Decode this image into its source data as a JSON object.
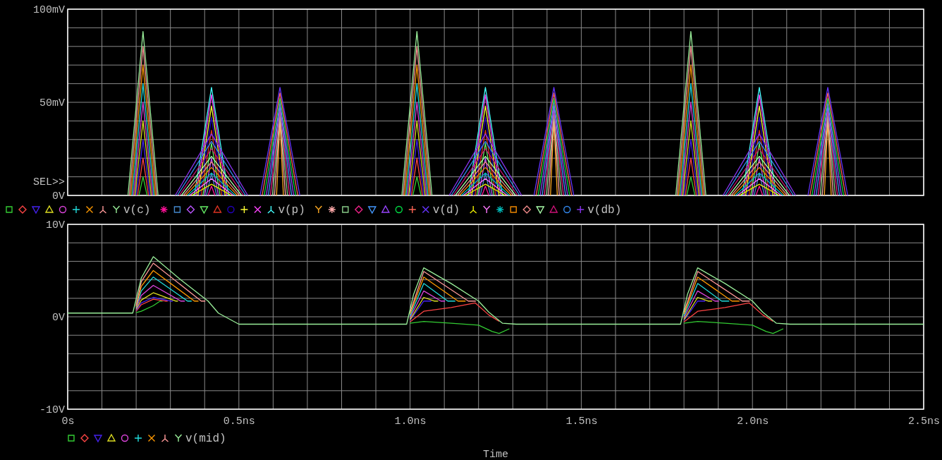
{
  "chart_data": [
    {
      "type": "line",
      "xlim": [
        0,
        2.5
      ],
      "xticks": [
        0,
        0.1,
        0.2,
        0.3,
        0.4,
        0.5,
        0.6,
        0.7,
        0.8,
        0.9,
        1.0,
        1.1,
        1.2,
        1.3,
        1.4,
        1.5,
        1.6,
        1.7,
        1.8,
        1.9,
        2.0,
        2.1,
        2.2,
        2.3,
        2.4,
        2.5
      ],
      "ylim": [
        0,
        100
      ],
      "yticks": [
        {
          "value": 0,
          "label": "0V"
        },
        {
          "value": 10,
          "label": null
        },
        {
          "value": 20,
          "label": null
        },
        {
          "value": 30,
          "label": null
        },
        {
          "value": 40,
          "label": null
        },
        {
          "value": 50,
          "label": "50mV"
        },
        {
          "value": 60,
          "label": null
        },
        {
          "value": 70,
          "label": null
        },
        {
          "value": 80,
          "label": null
        },
        {
          "value": 90,
          "label": null
        },
        {
          "value": 100,
          "label": "100mV"
        }
      ],
      "tick_labels": "y",
      "grid": true,
      "legend": "bottom left",
      "annotations": [
        "SEL>>"
      ],
      "series": [
        {
          "color": "#33cc33",
          "x": [
            0.208,
            0.22,
            0.232,
            0.6,
            1.008,
            1.02,
            1.032,
            1.4,
            1.808,
            1.82,
            1.832
          ],
          "values": [
            0,
            10,
            0,
            null,
            0,
            10,
            0,
            null,
            0,
            10,
            0
          ]
        },
        {
          "color": "#ff4444",
          "x": [
            0.204,
            0.22,
            0.236,
            0.6,
            1.004,
            1.02,
            1.036,
            1.4,
            1.804,
            1.82,
            1.836
          ],
          "values": [
            0,
            20,
            0,
            null,
            0,
            20,
            0,
            null,
            0,
            20,
            0
          ]
        },
        {
          "color": "#4422ee",
          "x": [
            0.2,
            0.22,
            0.24,
            0.6,
            1.0,
            1.02,
            1.04,
            1.4,
            1.8,
            1.82,
            1.84
          ],
          "values": [
            0,
            30,
            0,
            null,
            0,
            30,
            0,
            null,
            0,
            30,
            0
          ]
        },
        {
          "color": "#dddd22",
          "x": [
            0.196,
            0.22,
            0.244,
            0.6,
            0.996,
            1.02,
            1.044,
            1.4,
            1.796,
            1.82,
            1.844
          ],
          "values": [
            0,
            40,
            0,
            null,
            0,
            40,
            0,
            null,
            0,
            40,
            0
          ]
        },
        {
          "color": "#dd44dd",
          "x": [
            0.192,
            0.22,
            0.248,
            0.6,
            0.992,
            1.02,
            1.048,
            1.4,
            1.792,
            1.82,
            1.848
          ],
          "values": [
            0,
            50,
            0,
            null,
            0,
            50,
            0,
            null,
            0,
            50,
            0
          ]
        },
        {
          "color": "#22dddd",
          "x": [
            0.188,
            0.22,
            0.252,
            0.6,
            0.988,
            1.02,
            1.052,
            1.4,
            1.788,
            1.82,
            1.852
          ],
          "values": [
            0,
            60,
            0,
            null,
            0,
            60,
            0,
            null,
            0,
            60,
            0
          ]
        },
        {
          "color": "#ff9900",
          "x": [
            0.184,
            0.22,
            0.256,
            0.6,
            0.984,
            1.02,
            1.056,
            1.4,
            1.784,
            1.82,
            1.856
          ],
          "values": [
            0,
            70,
            0,
            null,
            0,
            70,
            0,
            null,
            0,
            70,
            0
          ]
        },
        {
          "color": "#ff9999",
          "x": [
            0.18,
            0.22,
            0.26,
            0.6,
            0.98,
            1.02,
            1.06,
            1.4,
            1.78,
            1.82,
            1.86
          ],
          "values": [
            0,
            80,
            0,
            null,
            0,
            80,
            0,
            null,
            0,
            80,
            0
          ]
        },
        {
          "name": "v(c)",
          "color": "#99ee99",
          "x": [
            0.176,
            0.22,
            0.264,
            0.6,
            0.976,
            1.02,
            1.064,
            1.4,
            1.776,
            1.82,
            1.864
          ],
          "values": [
            0,
            88,
            0,
            null,
            0,
            88,
            0,
            null,
            0,
            88,
            0
          ]
        },
        {
          "color": "#ff1199",
          "x": [
            0.41,
            0.42,
            0.43,
            0.8,
            1.21,
            1.22,
            1.23,
            1.6,
            2.01,
            2.02,
            2.03
          ],
          "values": [
            0,
            5,
            0,
            null,
            0,
            5,
            0,
            null,
            0,
            5,
            0
          ]
        },
        {
          "color": "#4488cc",
          "x": [
            0.405,
            0.42,
            0.435,
            0.8,
            1.205,
            1.22,
            1.235,
            1.6,
            2.005,
            2.02,
            2.035
          ],
          "values": [
            0,
            12,
            0,
            null,
            0,
            12,
            0,
            null,
            0,
            12,
            0
          ]
        },
        {
          "color": "#bb55ff",
          "x": [
            0.4,
            0.42,
            0.44,
            0.8,
            1.2,
            1.22,
            1.24,
            1.6,
            2.0,
            2.02,
            2.04
          ],
          "values": [
            0,
            20,
            0,
            null,
            0,
            20,
            0,
            null,
            0,
            20,
            0
          ]
        },
        {
          "color": "#66ee66",
          "x": [
            0.395,
            0.42,
            0.445,
            0.8,
            1.195,
            1.22,
            1.245,
            1.6,
            1.995,
            2.02,
            2.045
          ],
          "values": [
            0,
            28,
            0,
            null,
            0,
            28,
            0,
            null,
            0,
            28,
            0
          ]
        },
        {
          "color": "#dd3322",
          "x": [
            0.39,
            0.42,
            0.45,
            0.8,
            1.19,
            1.22,
            1.25,
            1.6,
            1.99,
            2.02,
            2.05
          ],
          "values": [
            0,
            35,
            0,
            null,
            0,
            35,
            0,
            null,
            0,
            35,
            0
          ]
        },
        {
          "color": "#2200bb",
          "x": [
            0.385,
            0.42,
            0.455,
            0.8,
            1.185,
            1.22,
            1.255,
            1.6,
            1.985,
            2.02,
            2.055
          ],
          "values": [
            0,
            42,
            0,
            null,
            0,
            42,
            0,
            null,
            0,
            42,
            0
          ]
        },
        {
          "color": "#ffff33",
          "x": [
            0.38,
            0.42,
            0.46,
            0.8,
            1.18,
            1.22,
            1.26,
            1.6,
            1.98,
            2.02,
            2.06
          ],
          "values": [
            0,
            48,
            0,
            null,
            0,
            48,
            0,
            null,
            0,
            48,
            0
          ]
        },
        {
          "color": "#ff44ff",
          "x": [
            0.375,
            0.42,
            0.465,
            0.8,
            1.175,
            1.22,
            1.265,
            1.6,
            1.975,
            2.02,
            2.065
          ],
          "values": [
            0,
            54,
            0,
            null,
            0,
            54,
            0,
            null,
            0,
            54,
            0
          ]
        },
        {
          "name": "v(p)",
          "color": "#44ffff",
          "x": [
            0.37,
            0.42,
            0.47,
            0.8,
            1.17,
            1.22,
            1.27,
            1.6,
            1.97,
            2.02,
            2.07
          ],
          "values": [
            0,
            58,
            0,
            null,
            0,
            58,
            0,
            null,
            0,
            58,
            0
          ]
        },
        {
          "color": "#ffaa22",
          "x": [
            0.61,
            0.62,
            0.63,
            1.0,
            1.41,
            1.42,
            1.43,
            1.8,
            2.21,
            2.22,
            2.23
          ],
          "values": [
            0,
            40,
            0,
            null,
            0,
            40,
            0,
            null,
            0,
            40,
            0
          ]
        },
        {
          "color": "#ffaaaa",
          "x": [
            0.604,
            0.62,
            0.636,
            1.0,
            1.404,
            1.42,
            1.436,
            1.8,
            2.204,
            2.22,
            2.236
          ],
          "values": [
            0,
            42,
            0,
            null,
            0,
            42,
            0,
            null,
            0,
            42,
            0
          ]
        },
        {
          "color": "#88cc88",
          "x": [
            0.598,
            0.62,
            0.642,
            1.0,
            1.398,
            1.42,
            1.442,
            1.8,
            2.198,
            2.22,
            2.242
          ],
          "values": [
            0,
            44,
            0,
            null,
            0,
            44,
            0,
            null,
            0,
            44,
            0
          ]
        },
        {
          "color": "#ee2288",
          "x": [
            0.592,
            0.62,
            0.648,
            1.0,
            1.392,
            1.42,
            1.448,
            1.8,
            2.192,
            2.22,
            2.248
          ],
          "values": [
            0,
            46,
            0,
            null,
            0,
            46,
            0,
            null,
            0,
            46,
            0
          ]
        },
        {
          "color": "#4499ff",
          "x": [
            0.586,
            0.62,
            0.654,
            1.0,
            1.386,
            1.42,
            1.454,
            1.8,
            2.186,
            2.22,
            2.254
          ],
          "values": [
            0,
            48,
            0,
            null,
            0,
            48,
            0,
            null,
            0,
            48,
            0
          ]
        },
        {
          "color": "#9944ff",
          "x": [
            0.58,
            0.62,
            0.66,
            1.0,
            1.38,
            1.42,
            1.46,
            1.8,
            2.18,
            2.22,
            2.26
          ],
          "values": [
            0,
            50,
            0,
            null,
            0,
            50,
            0,
            null,
            0,
            50,
            0
          ]
        },
        {
          "color": "#00dd44",
          "x": [
            0.574,
            0.62,
            0.666,
            1.0,
            1.374,
            1.42,
            1.466,
            1.8,
            2.174,
            2.22,
            2.266
          ],
          "values": [
            0,
            52,
            0,
            null,
            0,
            52,
            0,
            null,
            0,
            52,
            0
          ]
        },
        {
          "color": "#ff6655",
          "x": [
            0.568,
            0.62,
            0.672,
            1.0,
            1.368,
            1.42,
            1.472,
            1.8,
            2.168,
            2.22,
            2.272
          ],
          "values": [
            0,
            55,
            0,
            null,
            0,
            55,
            0,
            null,
            0,
            55,
            0
          ]
        },
        {
          "name": "v(d)",
          "color": "#6633ff",
          "x": [
            0.562,
            0.62,
            0.678,
            1.0,
            1.362,
            1.42,
            1.478,
            1.8,
            2.162,
            2.22,
            2.278
          ],
          "values": [
            0,
            58,
            0,
            null,
            0,
            58,
            0,
            null,
            0,
            58,
            0
          ]
        },
        {
          "color": "#eeee00",
          "x": [
            0.362,
            0.42,
            0.478,
            0.8,
            1.162,
            1.22,
            1.278,
            1.6,
            1.962,
            2.02,
            2.078
          ],
          "values": [
            0,
            6,
            0,
            null,
            0,
            6,
            0,
            null,
            0,
            6,
            0
          ]
        },
        {
          "color": "#ff77ff",
          "x": [
            0.356,
            0.42,
            0.484,
            0.8,
            1.156,
            1.22,
            1.284,
            1.6,
            1.956,
            2.02,
            2.084
          ],
          "values": [
            0,
            9,
            0,
            null,
            0,
            9,
            0,
            null,
            0,
            9,
            0
          ]
        },
        {
          "color": "#00bbbb",
          "x": [
            0.35,
            0.42,
            0.49,
            0.8,
            1.15,
            1.22,
            1.29,
            1.6,
            1.95,
            2.02,
            2.09
          ],
          "values": [
            0,
            12,
            0,
            null,
            0,
            12,
            0,
            null,
            0,
            12,
            0
          ]
        },
        {
          "color": "#ee8800",
          "x": [
            0.344,
            0.42,
            0.496,
            0.8,
            1.144,
            1.22,
            1.296,
            1.6,
            1.944,
            2.02,
            2.096
          ],
          "values": [
            0,
            15,
            0,
            null,
            0,
            15,
            0,
            null,
            0,
            15,
            0
          ]
        },
        {
          "color": "#ee8888",
          "x": [
            0.338,
            0.42,
            0.502,
            0.8,
            1.138,
            1.22,
            1.302,
            1.6,
            1.938,
            2.02,
            2.102
          ],
          "values": [
            0,
            18,
            0,
            null,
            0,
            18,
            0,
            null,
            0,
            18,
            0
          ]
        },
        {
          "color": "#aaffaa",
          "x": [
            0.332,
            0.42,
            0.508,
            0.8,
            1.132,
            1.22,
            1.308,
            1.6,
            1.932,
            2.02,
            2.108
          ],
          "values": [
            0,
            21,
            0,
            null,
            0,
            21,
            0,
            null,
            0,
            21,
            0
          ]
        },
        {
          "color": "#cc1177",
          "x": [
            0.326,
            0.42,
            0.514,
            0.8,
            1.126,
            1.22,
            1.314,
            1.6,
            1.926,
            2.02,
            2.114
          ],
          "values": [
            0,
            25,
            0,
            null,
            0,
            25,
            0,
            null,
            0,
            25,
            0
          ]
        },
        {
          "color": "#3388ee",
          "x": [
            0.32,
            0.42,
            0.52,
            0.8,
            1.12,
            1.22,
            1.32,
            1.6,
            1.92,
            2.02,
            2.12
          ],
          "values": [
            0,
            29,
            0,
            null,
            0,
            29,
            0,
            null,
            0,
            29,
            0
          ]
        },
        {
          "name": "v(db)",
          "color": "#8833ee",
          "x": [
            0.314,
            0.42,
            0.526,
            0.8,
            1.114,
            1.22,
            1.326,
            1.6,
            1.914,
            2.02,
            2.126
          ],
          "values": [
            0,
            33,
            0,
            null,
            0,
            33,
            0,
            null,
            0,
            33,
            0
          ]
        }
      ]
    },
    {
      "type": "line",
      "xlabel": "Time",
      "xlim": [
        0,
        2.5
      ],
      "xticks": [
        {
          "value": 0,
          "label": "0s"
        },
        {
          "value": 0.1,
          "label": null
        },
        {
          "value": 0.2,
          "label": null
        },
        {
          "value": 0.3,
          "label": null
        },
        {
          "value": 0.4,
          "label": null
        },
        {
          "value": 0.5,
          "label": "0.5ns"
        },
        {
          "value": 0.6,
          "label": null
        },
        {
          "value": 0.7,
          "label": null
        },
        {
          "value": 0.8,
          "label": null
        },
        {
          "value": 0.9,
          "label": null
        },
        {
          "value": 1.0,
          "label": "1.0ns"
        },
        {
          "value": 1.1,
          "label": null
        },
        {
          "value": 1.2,
          "label": null
        },
        {
          "value": 1.3,
          "label": null
        },
        {
          "value": 1.4,
          "label": null
        },
        {
          "value": 1.5,
          "label": "1.5ns"
        },
        {
          "value": 1.6,
          "label": null
        },
        {
          "value": 1.7,
          "label": null
        },
        {
          "value": 1.8,
          "label": null
        },
        {
          "value": 1.9,
          "label": null
        },
        {
          "value": 2.0,
          "label": "2.0ns"
        },
        {
          "value": 2.1,
          "label": null
        },
        {
          "value": 2.2,
          "label": null
        },
        {
          "value": 2.3,
          "label": null
        },
        {
          "value": 2.4,
          "label": null
        },
        {
          "value": 2.5,
          "label": "2.5ns"
        }
      ],
      "ylim": [
        -10,
        10
      ],
      "yticks": [
        {
          "value": -10,
          "label": "-10V"
        },
        {
          "value": -8,
          "label": null
        },
        {
          "value": -6,
          "label": null
        },
        {
          "value": -4,
          "label": null
        },
        {
          "value": -2,
          "label": null
        },
        {
          "value": 0,
          "label": "0V"
        },
        {
          "value": 2,
          "label": null
        },
        {
          "value": 4,
          "label": null
        },
        {
          "value": 6,
          "label": null
        },
        {
          "value": 8,
          "label": null
        },
        {
          "value": 10,
          "label": "10V"
        }
      ],
      "grid": true,
      "legend": "bottom left",
      "series": [
        {
          "color": "#33cc33",
          "x": [
            0.2,
            0.215,
            0.25,
            0.27,
            0.277,
            0.6,
            1.0,
            1.04,
            1.12,
            1.2,
            1.24,
            1.26,
            1.29,
            1.5,
            1.8,
            1.84,
            1.92,
            2.0,
            2.04,
            2.06,
            2.09
          ],
          "values": [
            0.45,
            0.6,
            1.2,
            1.7,
            1.7,
            null,
            -0.7,
            -0.5,
            -0.7,
            -0.9,
            -1.6,
            -1.8,
            -1.3,
            null,
            -0.7,
            -0.5,
            -0.7,
            -0.9,
            -1.6,
            -1.8,
            -1.3
          ]
        },
        {
          "color": "#ff4444",
          "x": [
            0.2,
            0.215,
            0.25,
            0.285,
            0.292,
            0.6,
            1.0,
            1.04,
            1.12,
            1.19,
            1.23,
            1.26,
            1.5,
            1.8,
            1.84,
            1.92,
            1.99,
            2.03,
            2.06
          ],
          "values": [
            0.6,
            1.3,
            1.9,
            1.7,
            1.7,
            null,
            -0.55,
            0.6,
            1.0,
            1.5,
            0.2,
            -0.5,
            null,
            -0.55,
            0.6,
            1.0,
            1.5,
            0.2,
            -0.5
          ]
        },
        {
          "color": "#4422ee",
          "x": [
            0.2,
            0.215,
            0.25,
            0.3,
            0.307,
            0.6,
            1.0,
            1.04,
            1.062,
            1.5,
            1.8,
            1.84,
            1.862
          ],
          "values": [
            0.7,
            1.5,
            2.1,
            1.7,
            1.7,
            null,
            -0.4,
            1.7,
            1.7,
            null,
            -0.4,
            1.7,
            1.7
          ]
        },
        {
          "color": "#dddd22",
          "x": [
            0.2,
            0.215,
            0.25,
            0.315,
            0.322,
            0.6,
            1.0,
            1.04,
            1.07,
            1.082,
            1.5,
            1.8,
            1.84,
            1.87,
            1.882
          ],
          "values": [
            0.8,
            1.8,
            2.6,
            1.7,
            1.7,
            null,
            -0.3,
            2.1,
            1.7,
            1.7,
            null,
            -0.3,
            2.1,
            1.7,
            1.7
          ]
        },
        {
          "color": "#dd44dd",
          "x": [
            0.2,
            0.215,
            0.25,
            0.33,
            0.342,
            0.6,
            1.0,
            1.04,
            1.09,
            1.102,
            1.5,
            1.8,
            1.84,
            1.89,
            1.902
          ],
          "values": [
            0.9,
            2.3,
            3.4,
            1.7,
            1.7,
            null,
            -0.1,
            2.8,
            1.7,
            1.7,
            null,
            -0.1,
            2.8,
            1.7,
            1.7
          ]
        },
        {
          "color": "#22dddd",
          "x": [
            0.2,
            0.215,
            0.25,
            0.35,
            0.362,
            0.6,
            1.0,
            1.04,
            1.11,
            1.132,
            1.5,
            1.8,
            1.84,
            1.91,
            1.932
          ],
          "values": [
            1.0,
            2.8,
            4.3,
            1.7,
            1.7,
            null,
            0.1,
            3.6,
            1.7,
            1.7,
            null,
            0.1,
            3.6,
            1.7,
            1.7
          ]
        },
        {
          "color": "#ff9900",
          "x": [
            0.2,
            0.215,
            0.25,
            0.37,
            0.382,
            0.6,
            1.0,
            1.04,
            1.14,
            1.162,
            1.5,
            1.8,
            1.84,
            1.94,
            1.962
          ],
          "values": [
            1.1,
            3.3,
            5.0,
            1.7,
            1.7,
            null,
            0.3,
            4.3,
            1.7,
            1.7,
            null,
            0.3,
            4.3,
            1.7,
            1.7
          ]
        },
        {
          "color": "#ff9999",
          "x": [
            0.2,
            0.215,
            0.25,
            0.39,
            0.402,
            0.6,
            1.0,
            1.04,
            1.17,
            1.192,
            1.5,
            1.8,
            1.84,
            1.97,
            1.992
          ],
          "values": [
            1.2,
            3.8,
            5.8,
            1.7,
            1.7,
            null,
            0.5,
            4.9,
            1.7,
            1.7,
            null,
            0.5,
            4.9,
            1.7,
            1.7
          ]
        },
        {
          "name": "v(mid)",
          "color": "#99ee99",
          "x": [
            0,
            0.19,
            0.215,
            0.25,
            0.33,
            0.41,
            0.44,
            0.5,
            0.99,
            1.01,
            1.04,
            1.12,
            1.2,
            1.23,
            1.27,
            1.31,
            1.79,
            1.81,
            1.84,
            1.92,
            2.0,
            2.03,
            2.07,
            2.11,
            2.5
          ],
          "values": [
            0.4,
            0.4,
            4.2,
            6.5,
            4.0,
            1.7,
            0.4,
            -0.8,
            -0.8,
            2.4,
            5.3,
            3.6,
            1.7,
            0.5,
            -0.7,
            -0.8,
            -0.8,
            2.4,
            5.3,
            3.6,
            1.7,
            0.5,
            -0.7,
            -0.8,
            -0.8
          ]
        }
      ]
    }
  ]
}
